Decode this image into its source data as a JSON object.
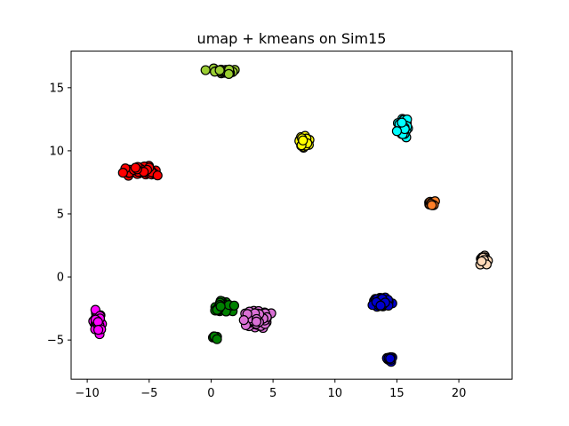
{
  "chart_data": {
    "type": "scatter",
    "title": "umap + kmeans on Sim15",
    "xlabel": "",
    "ylabel": "",
    "xlim": [
      -11.3,
      24.3
    ],
    "ylim": [
      -8.1,
      17.9
    ],
    "xticks": [
      -10,
      -5,
      0,
      5,
      10,
      15,
      20
    ],
    "yticks": [
      -5,
      0,
      5,
      10,
      15
    ],
    "grid": false,
    "marker_edge_color": "#000000",
    "clusters": [
      {
        "color": "#9ACD32",
        "center": [
          1.0,
          16.3
        ],
        "spread": [
          1.0,
          0.18
        ],
        "n": 40
      },
      {
        "color": "#FFFF00",
        "center": [
          7.5,
          10.7
        ],
        "spread": [
          0.35,
          0.4
        ],
        "n": 25
      },
      {
        "color": "#00FFFF",
        "center": [
          15.5,
          11.9
        ],
        "spread": [
          0.35,
          0.6
        ],
        "n": 45
      },
      {
        "color": "#FF0000",
        "center": [
          -5.7,
          8.4
        ],
        "spread": [
          1.6,
          0.3
        ],
        "n": 45
      },
      {
        "color": "#FF7F27",
        "center": [
          17.9,
          5.8
        ],
        "spread": [
          0.3,
          0.15
        ],
        "n": 12
      },
      {
        "color": "#FFDAB9",
        "center": [
          22.0,
          1.3
        ],
        "spread": [
          0.3,
          0.35
        ],
        "n": 18
      },
      {
        "color": "#FF00FF",
        "center": [
          -9.1,
          -3.6
        ],
        "spread": [
          0.3,
          0.7
        ],
        "n": 35
      },
      {
        "color": "#008000",
        "center": [
          1.0,
          -2.4
        ],
        "spread": [
          0.8,
          0.4
        ],
        "n": 40
      },
      {
        "color": "#008000",
        "center": [
          0.3,
          -4.8
        ],
        "spread": [
          0.15,
          0.12
        ],
        "n": 6
      },
      {
        "color": "#DA70D6",
        "center": [
          3.5,
          -3.4
        ],
        "spread": [
          1.0,
          0.6
        ],
        "n": 90
      },
      {
        "color": "#0000CD",
        "center": [
          13.8,
          -2.0
        ],
        "spread": [
          0.6,
          0.35
        ],
        "n": 55
      },
      {
        "color": "#0000CD",
        "center": [
          14.4,
          -6.5
        ],
        "spread": [
          0.3,
          0.2
        ],
        "n": 18
      }
    ]
  }
}
